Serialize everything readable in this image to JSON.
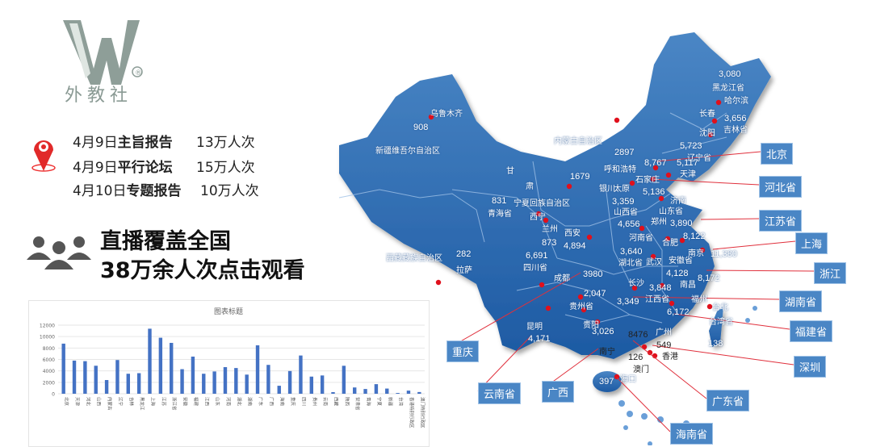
{
  "logo": {
    "brand": "外教社",
    "mark": "W",
    "registered": "®"
  },
  "events": [
    {
      "date": "4月9日",
      "name": "主旨报告",
      "count": "13万人次"
    },
    {
      "date": "4月9日",
      "name": "平行论坛",
      "count": "15万人次"
    },
    {
      "date": "4月10日",
      "name": "专题报告",
      "count": "10万人次"
    }
  ],
  "headline": {
    "line1": "直播覆盖全国",
    "line2": "38万余人次点击观看"
  },
  "colors": {
    "map": "#2e6db3",
    "dot": "#e0101c",
    "tag": "#4a86c5",
    "bar": "#4472c4"
  },
  "icons": {
    "location": "map-pin-icon",
    "audience": "people-group-icon"
  },
  "map": {
    "labels": [
      "乌鲁木齐",
      "908",
      "新疆维吾尔自治区",
      "甘",
      "肃",
      "1679",
      "银川",
      "宁夏回族自治区",
      "831",
      "青海省",
      "西宁",
      "兰州",
      "873",
      "西安",
      "4,894",
      "西藏藏族自治区",
      "282",
      "拉萨",
      "6,691",
      "四川省",
      "成都",
      "3980",
      "内蒙古自治区",
      "2897",
      "呼和浩特",
      "3,080",
      "黑龙江省",
      "哈尔滨",
      "长春",
      "3,656",
      "吉林省",
      "沈阳",
      "5,723",
      "辽宁省",
      "8,767",
      "5,117",
      "天津",
      "石家庄",
      "太原",
      "5,136",
      "3,359",
      "山西省",
      "济南",
      "山东省",
      "3,890",
      "4,656",
      "郑州",
      "河南省",
      "8,122",
      "合肥",
      "南京",
      "11,380",
      "3,640",
      "湖北省",
      "武汉",
      "安徽省",
      "4,128",
      "8,172",
      "长沙",
      "3,848",
      "南昌",
      "江西省",
      "3,349",
      "2,047",
      "贵州省",
      "贵阳",
      "福州",
      "6,172",
      "台北",
      "台湾省",
      "138",
      "昆明",
      "4,171",
      "3,026",
      "南宁",
      "8476",
      "广州",
      "549",
      "香港",
      "126",
      "澳门",
      "海口",
      "397"
    ],
    "callouts": [
      "北京",
      "河北省",
      "江苏省",
      "上海",
      "浙江",
      "湖南省",
      "福建省",
      "深圳",
      "广东省",
      "海南省",
      "广西",
      "云南省",
      "重庆"
    ]
  },
  "chart_data": {
    "type": "bar",
    "title": "图表标题",
    "categories": [
      "北京",
      "天津",
      "河北",
      "山西",
      "内蒙古",
      "辽宁",
      "吉林",
      "黑龙江",
      "上海",
      "江苏",
      "浙江省",
      "安徽",
      "福建",
      "江西",
      "山东",
      "河南",
      "湖北",
      "湖南",
      "广东",
      "广西",
      "海南",
      "重庆",
      "四川",
      "贵州",
      "云南",
      "西藏",
      "陕西",
      "甘肃省",
      "青海",
      "宁夏",
      "新疆",
      "台湾",
      "香港特别行政区",
      "澳门特别行政区"
    ],
    "values": [
      8767,
      5800,
      5700,
      4900,
      2400,
      5900,
      3500,
      3600,
      11380,
      9800,
      8900,
      4300,
      6500,
      3500,
      3900,
      4656,
      4500,
      3349,
      8476,
      5050,
      1400,
      3980,
      6691,
      3000,
      3200,
      282,
      4894,
      1100,
      831,
      1679,
      908,
      138,
      549,
      300
    ],
    "yticks": [
      0,
      2000,
      4000,
      6000,
      8000,
      10000,
      12000
    ],
    "ylim": [
      0,
      12000
    ],
    "grid": true,
    "legend": "none"
  }
}
